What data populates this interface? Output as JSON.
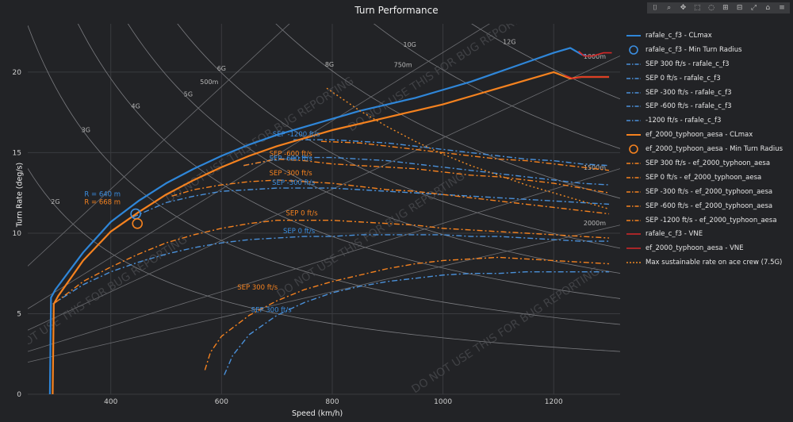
{
  "title": "Turn Performance",
  "modebar": {
    "icons": [
      "camera-icon",
      "zoom-icon",
      "pan-icon",
      "box-select-icon",
      "lasso-icon",
      "zoom-in-icon",
      "zoom-out-icon",
      "autoscale-icon",
      "home-icon",
      "spike-icon"
    ]
  },
  "watermark": "DO NOT USE THIS FOR BUG REPORTING",
  "chart_data": {
    "type": "line",
    "title": "Turn Performance",
    "xlabel": "Speed (km/h)",
    "ylabel": "Turn Rate (deg/s)",
    "xlim": [
      250,
      1320
    ],
    "ylim": [
      0,
      23
    ],
    "x_ticks": [
      400,
      600,
      800,
      1000,
      1200
    ],
    "y_ticks": [
      0,
      5,
      10,
      15,
      20
    ],
    "grid": true,
    "legend_position": "right",
    "g_lines": [
      {
        "label": "2G",
        "g": 2,
        "x": 300
      },
      {
        "label": "3G",
        "g": 3,
        "x": 355
      },
      {
        "label": "4G",
        "g": 4,
        "x": 445
      },
      {
        "label": "5G",
        "g": 5,
        "x": 540
      },
      {
        "label": "6G",
        "g": 6,
        "x": 600
      },
      {
        "label": "8G",
        "g": 8,
        "x": 795
      },
      {
        "label": "10G",
        "g": 10,
        "x": 940
      },
      {
        "label": "12G",
        "g": 12,
        "x": 1120
      }
    ],
    "radius_lines": [
      {
        "label": "500m",
        "r": 500,
        "x": 600
      },
      {
        "label": "750m",
        "r": 750,
        "x": 950
      },
      {
        "label": "1000m",
        "r": 1000,
        "x": 1300
      },
      {
        "label": "1500m",
        "r": 1500,
        "x": 1300
      },
      {
        "label": "2000m",
        "r": 2000,
        "x": 1300
      }
    ],
    "annotations": [
      {
        "text": "R = 640 m",
        "x": 385,
        "y": 12.3,
        "color": "#3b8ee0"
      },
      {
        "text": "R = 668 m",
        "x": 385,
        "y": 11.8,
        "color": "#f5821f"
      },
      {
        "text": "SEP -1200 ft/s",
        "x": 735,
        "y": 16.0,
        "color": "#3b8ee0"
      },
      {
        "text": "SEP -600 ft/s",
        "x": 725,
        "y": 14.8,
        "color": "#f5821f"
      },
      {
        "text": "SEP -600 ft/s",
        "x": 725,
        "y": 14.5,
        "color": "#3b8ee0"
      },
      {
        "text": "SEP -300 ft/s",
        "x": 725,
        "y": 13.6,
        "color": "#f5821f"
      },
      {
        "text": "SEP -300 ft/s",
        "x": 730,
        "y": 13.0,
        "color": "#3b8ee0"
      },
      {
        "text": "SEP 0 ft/s",
        "x": 745,
        "y": 11.1,
        "color": "#f5821f"
      },
      {
        "text": "SEP 0 ft/s",
        "x": 740,
        "y": 10.0,
        "color": "#3b8ee0"
      },
      {
        "text": "SEP 300 ft/s",
        "x": 665,
        "y": 6.5,
        "color": "#f5821f"
      },
      {
        "text": "SEP 300 ft/s",
        "x": 690,
        "y": 5.1,
        "color": "#3b8ee0"
      }
    ],
    "min_turn_points": [
      {
        "name": "rafale_c_f3 - Min Turn Radius",
        "x": 445,
        "y": 11.2,
        "color": "#3b8ee0"
      },
      {
        "name": "ef_2000_typhoon_aesa - Min Turn Radius",
        "x": 448,
        "y": 10.6,
        "color": "#f5821f"
      }
    ],
    "series": [
      {
        "name": "rafale_c_f3 - CLmax",
        "color": "#2f86d8",
        "style": "solid",
        "width": 2.2,
        "x": [
          290,
          292,
          300,
          350,
          400,
          450,
          500,
          550,
          600,
          650,
          700,
          750,
          800,
          850,
          900,
          950,
          1000,
          1050,
          1100,
          1150,
          1200,
          1230,
          1250,
          1260
        ],
        "y": [
          0,
          6.0,
          6.5,
          8.8,
          10.7,
          12.0,
          13.1,
          14.0,
          14.8,
          15.5,
          16.1,
          16.6,
          17.1,
          17.6,
          18.0,
          18.4,
          18.9,
          19.4,
          20.0,
          20.6,
          21.2,
          21.5,
          21.1,
          21.0
        ]
      },
      {
        "name": "rafale_c_f3 - Min Turn Radius",
        "color": "#3b8ee0",
        "style": "marker"
      },
      {
        "name": "SEP 300 ft/s - rafale_c_f3",
        "color": "#4a90d9",
        "style": "dashdot",
        "width": 1.4,
        "x": [
          605,
          620,
          650,
          700,
          750,
          800,
          850,
          900,
          950,
          1000,
          1050,
          1100,
          1150,
          1200,
          1250,
          1300
        ],
        "y": [
          1.2,
          2.4,
          3.7,
          4.9,
          5.7,
          6.3,
          6.7,
          7.0,
          7.2,
          7.4,
          7.5,
          7.5,
          7.6,
          7.6,
          7.6,
          7.6
        ]
      },
      {
        "name": "SEP 0 ft/s - rafale_c_f3",
        "color": "#4a90d9",
        "style": "dashdot",
        "width": 1.4,
        "x": [
          295,
          350,
          400,
          450,
          500,
          550,
          600,
          650,
          700,
          750,
          800,
          850,
          900,
          950,
          1000,
          1050,
          1100,
          1150,
          1200,
          1250,
          1300
        ],
        "y": [
          5.6,
          6.8,
          7.6,
          8.2,
          8.7,
          9.1,
          9.4,
          9.6,
          9.7,
          9.8,
          9.8,
          9.9,
          9.9,
          9.9,
          9.9,
          9.8,
          9.8,
          9.7,
          9.6,
          9.5,
          9.5
        ]
      },
      {
        "name": "SEP -300 ft/s - rafale_c_f3",
        "color": "#4a90d9",
        "style": "dashdot",
        "width": 1.4,
        "x": [
          440,
          500,
          550,
          600,
          650,
          700,
          750,
          800,
          850,
          900,
          950,
          1000,
          1050,
          1100,
          1150,
          1200,
          1250,
          1300
        ],
        "y": [
          11.0,
          11.9,
          12.3,
          12.6,
          12.7,
          12.8,
          12.8,
          12.8,
          12.7,
          12.6,
          12.5,
          12.4,
          12.3,
          12.2,
          12.1,
          12.0,
          11.9,
          11.8
        ]
      },
      {
        "name": "SEP -600 ft/s - rafale_c_f3",
        "color": "#4a90d9",
        "style": "dashdot",
        "width": 1.4,
        "x": [
          640,
          700,
          750,
          800,
          850,
          900,
          950,
          1000,
          1050,
          1100,
          1150,
          1200,
          1250,
          1300
        ],
        "y": [
          14.2,
          14.6,
          14.7,
          14.7,
          14.6,
          14.5,
          14.3,
          14.1,
          13.9,
          13.7,
          13.5,
          13.3,
          13.1,
          13.0
        ]
      },
      {
        "name": "-1200 ft/s - rafale_c_f3",
        "color": "#4a90d9",
        "style": "dashdot",
        "width": 1.4,
        "x": [
          730,
          780,
          800,
          850,
          900,
          950,
          1000,
          1050,
          1100,
          1150,
          1200,
          1250,
          1300
        ],
        "y": [
          15.8,
          15.8,
          15.8,
          15.7,
          15.6,
          15.4,
          15.2,
          15.0,
          14.8,
          14.6,
          14.5,
          14.3,
          14.2
        ]
      },
      {
        "name": "ef_2000_typhoon_aesa - CLmax",
        "color": "#f5821f",
        "style": "solid",
        "width": 2.2,
        "x": [
          295,
          297,
          305,
          350,
          400,
          450,
          500,
          550,
          600,
          650,
          700,
          750,
          800,
          850,
          900,
          950,
          1000,
          1050,
          1100,
          1150,
          1200,
          1215,
          1230,
          1250,
          1300
        ],
        "y": [
          0,
          5.6,
          6.1,
          8.3,
          10.1,
          11.3,
          12.4,
          13.3,
          14.1,
          14.8,
          15.4,
          15.9,
          16.4,
          16.8,
          17.2,
          17.6,
          18.0,
          18.5,
          19.0,
          19.5,
          20.0,
          19.8,
          19.6,
          19.7,
          19.7
        ]
      },
      {
        "name": "ef_2000_typhoon_aesa - Min Turn Radius",
        "color": "#f5821f",
        "style": "marker"
      },
      {
        "name": "SEP 300 ft/s - ef_2000_typhoon_aesa",
        "color": "#f5821f",
        "style": "dashdot",
        "width": 1.4,
        "x": [
          570,
          580,
          600,
          650,
          700,
          750,
          800,
          850,
          900,
          950,
          1000,
          1050,
          1100,
          1150,
          1200,
          1250,
          1300
        ],
        "y": [
          1.5,
          2.6,
          3.6,
          4.9,
          5.8,
          6.5,
          7.0,
          7.4,
          7.8,
          8.1,
          8.3,
          8.4,
          8.5,
          8.4,
          8.3,
          8.2,
          8.1
        ]
      },
      {
        "name": "SEP 0 ft/s - ef_2000_typhoon_aesa",
        "color": "#f5821f",
        "style": "dashdot",
        "width": 1.4,
        "x": [
          300,
          350,
          400,
          450,
          500,
          550,
          600,
          650,
          700,
          750,
          800,
          850,
          900,
          950,
          1000,
          1050,
          1100,
          1150,
          1200,
          1250,
          1300
        ],
        "y": [
          5.7,
          7.0,
          7.9,
          8.7,
          9.4,
          9.9,
          10.3,
          10.6,
          10.8,
          10.8,
          10.8,
          10.7,
          10.6,
          10.5,
          10.3,
          10.2,
          10.1,
          10.0,
          9.9,
          9.8,
          9.7
        ]
      },
      {
        "name": "SEP -300 ft/s - ef_2000_typhoon_aesa",
        "color": "#f5821f",
        "style": "dashdot",
        "width": 1.4,
        "x": [
          510,
          550,
          600,
          650,
          700,
          750,
          800,
          850,
          900,
          950,
          1000,
          1050,
          1100,
          1150,
          1200,
          1250,
          1300
        ],
        "y": [
          12.3,
          12.7,
          13.0,
          13.2,
          13.3,
          13.2,
          13.1,
          12.9,
          12.7,
          12.6,
          12.4,
          12.2,
          12.0,
          11.8,
          11.6,
          11.4,
          11.2
        ]
      },
      {
        "name": "SEP -600 ft/s - ef_2000_typhoon_aesa",
        "color": "#f5821f",
        "style": "dashdot",
        "width": 1.4,
        "x": [
          640,
          700,
          750,
          800,
          850,
          900,
          950,
          1000,
          1050,
          1100,
          1150,
          1200,
          1250,
          1300
        ],
        "y": [
          14.2,
          14.6,
          14.5,
          14.3,
          14.2,
          14.1,
          14.0,
          13.8,
          13.6,
          13.5,
          13.3,
          13.1,
          12.8,
          12.5
        ]
      },
      {
        "name": "SEP -1200 ft/s - ef_2000_typhoon_aesa",
        "color": "#f5821f",
        "style": "dashdot",
        "width": 1.4,
        "x": [
          780,
          850,
          900,
          950,
          1000,
          1050,
          1100,
          1150,
          1200,
          1250,
          1300
        ],
        "y": [
          15.7,
          15.6,
          15.4,
          15.2,
          15.0,
          14.8,
          14.6,
          14.5,
          14.3,
          14.1,
          13.9
        ]
      },
      {
        "name": "rafale_c_f3 - VNE",
        "color": "#d62828",
        "style": "solid",
        "width": 1.6,
        "x": [
          1245,
          1255,
          1270,
          1290,
          1305
        ],
        "y": [
          21.3,
          21.0,
          21.0,
          21.2,
          21.2
        ]
      },
      {
        "name": "ef_2000_typhoon_aesa - VNE",
        "color": "#d62828",
        "style": "solid",
        "width": 1.6,
        "x": [
          1220,
          1235,
          1250,
          1270,
          1300
        ],
        "y": [
          19.8,
          19.6,
          19.7,
          19.7,
          19.7
        ]
      },
      {
        "name": "Max sustainable rate on ace crew (7.5G)",
        "color": "#f08a24",
        "style": "dotted",
        "width": 1.4,
        "x": [
          790,
          850,
          900,
          950,
          1000,
          1050,
          1100,
          1150,
          1200,
          1250,
          1300
        ],
        "y": [
          19.0,
          17.6,
          16.6,
          15.7,
          14.9,
          14.2,
          13.6,
          13.0,
          12.5,
          12.0,
          11.5
        ]
      }
    ]
  }
}
